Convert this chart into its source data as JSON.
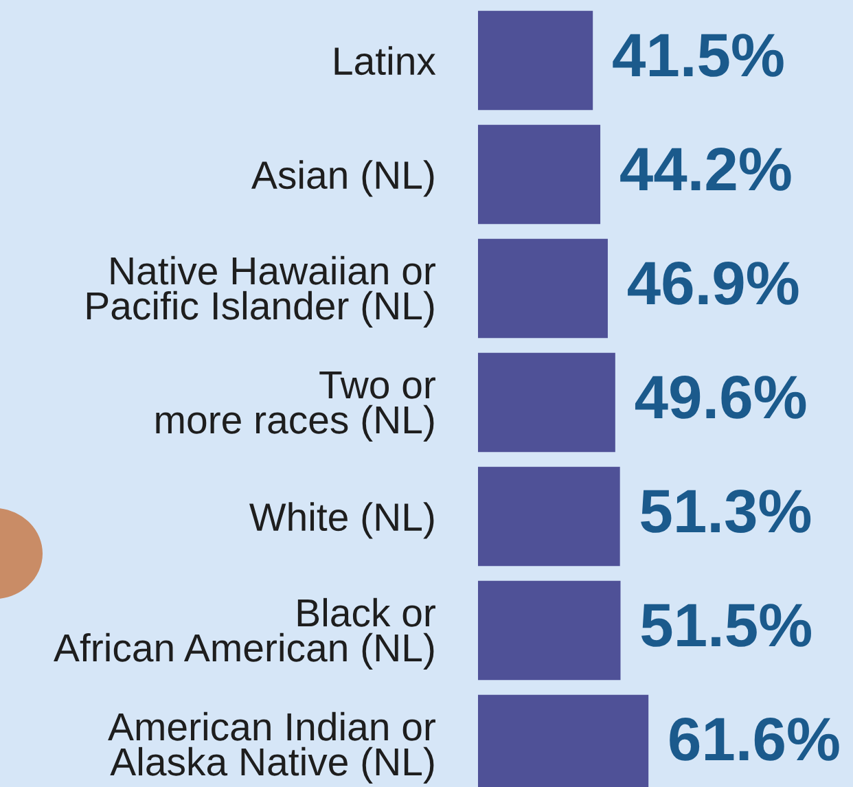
{
  "chart_data": {
    "type": "bar",
    "orientation": "horizontal",
    "categories": [
      "Latinx",
      "Asian (NL)",
      "Native Hawaiian or\nPacific Islander (NL)",
      "Two or\nmore races (NL)",
      "White (NL)",
      "Black or\nAfrican American (NL)",
      "American Indian or\nAlaska Native (NL)"
    ],
    "values": [
      41.5,
      44.2,
      46.9,
      49.6,
      51.3,
      51.5,
      61.6
    ],
    "color": "#4f5197",
    "data_labels": true,
    "value_labels": [
      "41.5%",
      "44.2%",
      "46.9%",
      "49.6%",
      "51.3%",
      "51.5%",
      "61.6%"
    ],
    "grid": false,
    "legend": false
  }
}
